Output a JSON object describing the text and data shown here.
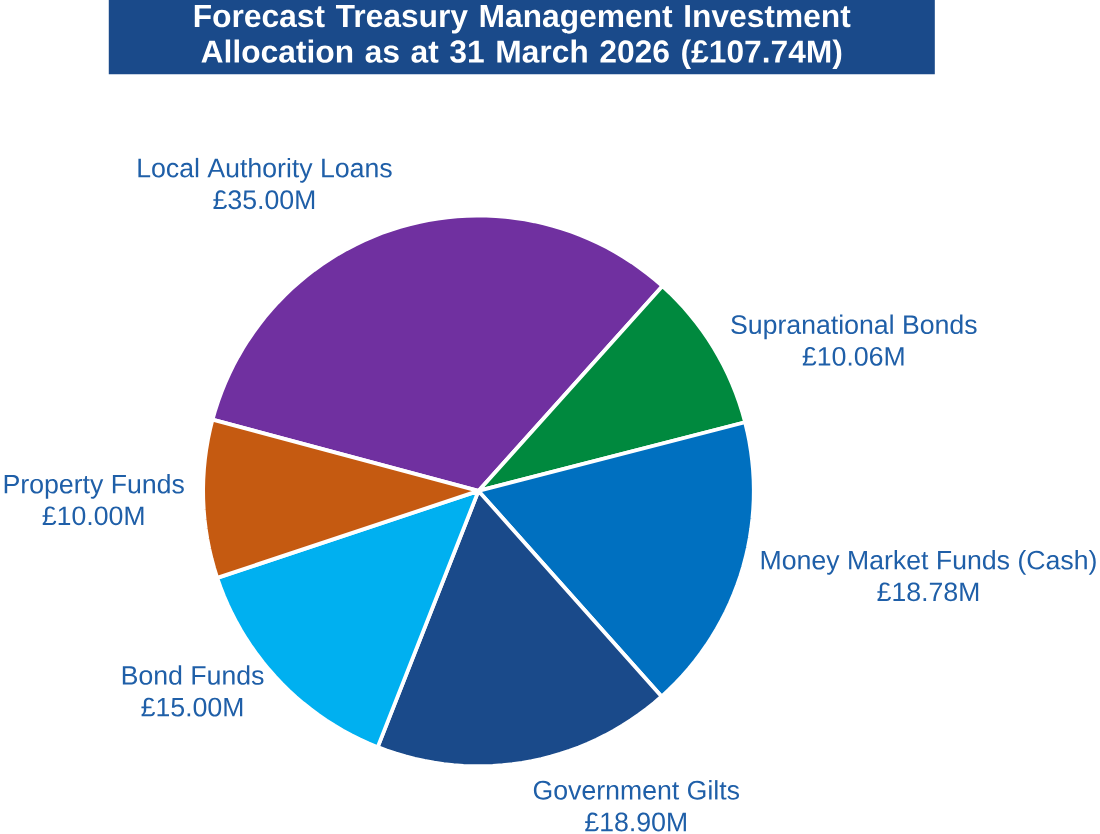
{
  "chart_data": {
    "type": "pie",
    "title": "Forecast Treasury Management Investment Allocation as at 31 March 2026 (£107.74M)",
    "categories": [
      "Local Authority Loans",
      "Supranational Bonds",
      "Money Market Funds (Cash)",
      "Government Gilts",
      "Bond Funds",
      "Property Funds"
    ],
    "values": [
      35.0,
      10.06,
      18.78,
      18.9,
      15.0,
      10.0
    ],
    "colors": [
      "#7030a0",
      "#00893e",
      "#0070c0",
      "#1a4a8a",
      "#00b0f0",
      "#c55a11"
    ],
    "value_labels": [
      "£35.00M",
      "£10.06M",
      "£18.78M",
      "£18.90M",
      "£15.00M",
      "£10.00M"
    ]
  }
}
